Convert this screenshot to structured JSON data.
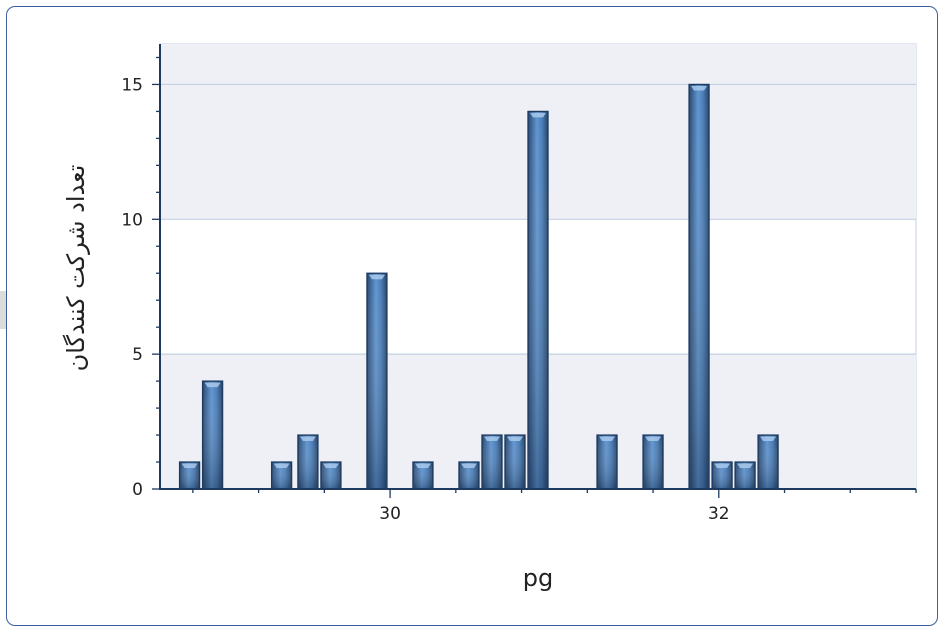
{
  "chart_data": {
    "type": "bar",
    "xlabel": "pg",
    "ylabel": "تعداد شرکت کنندگان",
    "x_ticks": [
      30,
      32
    ],
    "y_ticks": [
      0,
      5,
      10,
      15
    ],
    "xlim": [
      28.6,
      33.2
    ],
    "ylim": [
      0,
      16.5
    ],
    "bar_width": 0.14,
    "x": [
      28.78,
      28.92,
      29.34,
      29.5,
      29.64,
      29.92,
      30.2,
      30.48,
      30.62,
      30.76,
      30.9,
      31.32,
      31.6,
      31.88,
      32.02,
      32.16,
      32.3
    ],
    "values": [
      1,
      4,
      1,
      2,
      1,
      8,
      1,
      1,
      2,
      2,
      14,
      2,
      2,
      15,
      1,
      1,
      2
    ],
    "grid": true,
    "legend": "none",
    "colors": {
      "bar_light": "#6ea3dc",
      "bar_dark": "#2f4f7a",
      "bar_edge": "#1e3a5f",
      "band": "#eef0f5",
      "grid": "#c4d1e3",
      "axis": "#1e3a5f",
      "frame": "#3c5f9a"
    }
  }
}
